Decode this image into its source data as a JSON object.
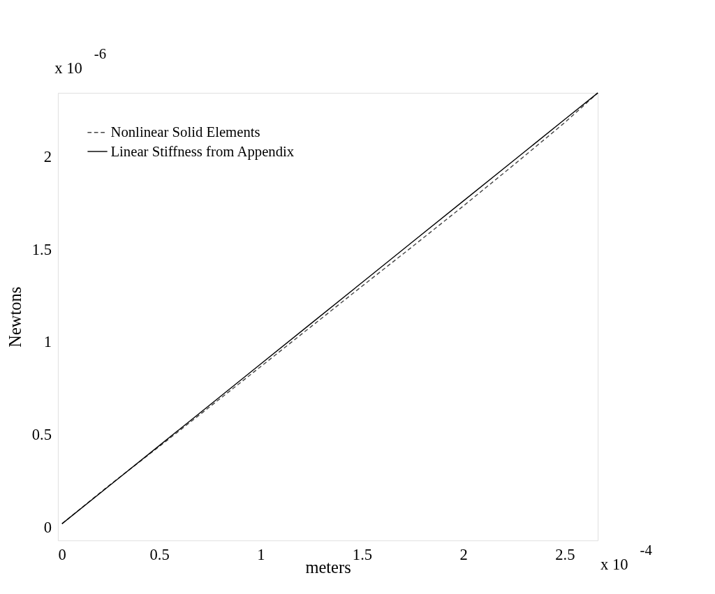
{
  "chart_data": {
    "type": "line",
    "xlabel": "meters",
    "ylabel": "Newtons",
    "x": [
      0.02,
      0.25,
      0.5,
      0.75,
      1.0,
      1.25,
      1.5,
      1.75,
      2.0,
      2.25,
      2.5,
      2.663
    ],
    "series": [
      {
        "name": "Nonlinear Solid Elements",
        "color": "#444444",
        "line_style": "dashed",
        "values": [
          0.02,
          0.225,
          0.437,
          0.652,
          0.868,
          1.085,
          1.302,
          1.517,
          1.735,
          1.958,
          2.185,
          2.345
        ]
      },
      {
        "name": "Linear Stiffness from Appendix",
        "color": "#000000",
        "line_style": "solid",
        "values": [
          0.02,
          0.222,
          0.442,
          0.662,
          0.882,
          1.102,
          1.322,
          1.542,
          1.762,
          1.982,
          2.202,
          2.345
        ]
      }
    ],
    "xlim": [
      0,
      2.663
    ],
    "ylim": [
      -0.07,
      2.345
    ],
    "xticks": [
      0,
      0.5,
      1,
      1.5,
      2,
      2.5
    ],
    "yticks": [
      0,
      0.5,
      1,
      1.5,
      2
    ],
    "grid": false,
    "legend": "top left",
    "marker": "none",
    "annotations": [
      "x 10$^{-6}$",
      "x 10$^{-4}$"
    ]
  }
}
